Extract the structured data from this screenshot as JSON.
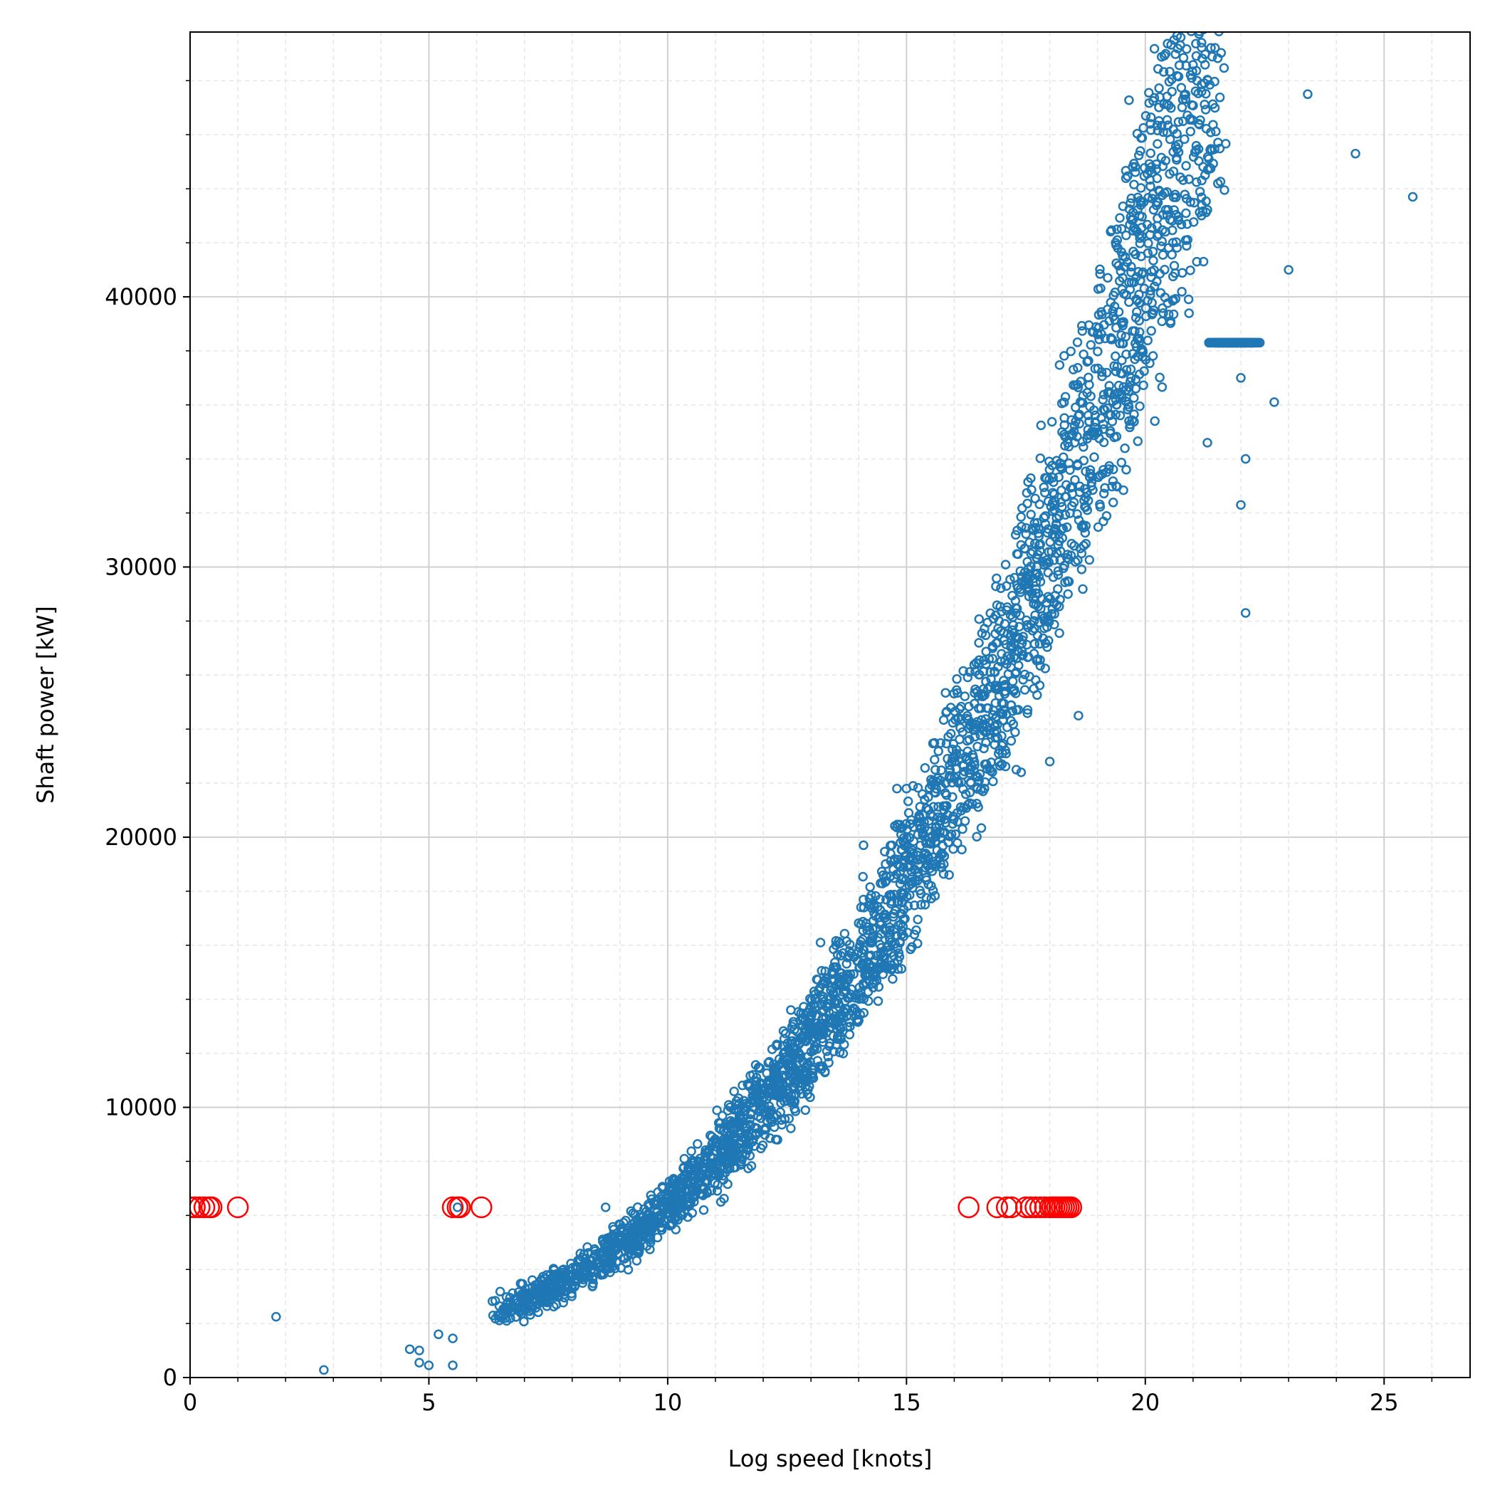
{
  "chart_data": {
    "type": "scatter",
    "title": "",
    "xlabel": "Log speed [knots]",
    "ylabel": "Shaft power [kW]",
    "xlim": [
      0,
      26.8
    ],
    "ylim": [
      0,
      49800
    ],
    "x_ticks": [
      0,
      5,
      10,
      15,
      20,
      25
    ],
    "y_ticks": [
      0,
      10000,
      20000,
      30000,
      40000
    ],
    "x_minor_step": 1,
    "y_minor_step": 2000,
    "grid": true,
    "legend": "none",
    "colors": {
      "main": "#1f77b4",
      "flagged": "#ff0000"
    },
    "series": [
      {
        "marker": "small-open-circle",
        "color": "#1f77b4",
        "trend": {
          "coef": [
            0.8,
            0.008,
            0.0047
          ],
          "power": 3,
          "scale": 1000
        },
        "points": [
          [
            1.8,
            2250
          ],
          [
            2.8,
            280
          ],
          [
            4.6,
            1050
          ],
          [
            4.8,
            1000
          ],
          [
            4.8,
            550
          ],
          [
            5.0,
            450
          ],
          [
            5.2,
            1600
          ],
          [
            5.5,
            1450
          ],
          [
            5.5,
            450
          ],
          [
            5.6,
            6300
          ],
          [
            8.7,
            6300
          ],
          [
            11.0,
            8700
          ],
          [
            12.3,
            8800
          ],
          [
            12.8,
            10500
          ],
          [
            13.2,
            11500
          ],
          [
            13.2,
            16100
          ],
          [
            14.1,
            19700
          ],
          [
            14.8,
            21800
          ],
          [
            15.0,
            21800
          ],
          [
            17.0,
            22700
          ],
          [
            17.3,
            22500
          ],
          [
            18.6,
            24500
          ],
          [
            19.8,
            36600
          ],
          [
            19.6,
            33600
          ],
          [
            20.2,
            35400
          ],
          [
            22.0,
            37000
          ],
          [
            21.8,
            38300
          ],
          [
            22.7,
            36100
          ],
          [
            23.0,
            41000
          ],
          [
            23.4,
            47500
          ],
          [
            24.4,
            45300
          ],
          [
            25.6,
            43700
          ],
          [
            22.1,
            34000
          ],
          [
            22.1,
            28300
          ],
          [
            22.0,
            32300
          ],
          [
            21.3,
            34600
          ],
          [
            17.4,
            22400
          ],
          [
            18.0,
            22800
          ]
        ]
      },
      {
        "marker": "large-open-circle",
        "color": "#ff0000",
        "points": [
          [
            0.0,
            6300
          ],
          [
            0.1,
            6300
          ],
          [
            0.2,
            6300
          ],
          [
            0.3,
            6300
          ],
          [
            0.4,
            6300
          ],
          [
            0.45,
            6300
          ],
          [
            1.0,
            6300
          ],
          [
            5.5,
            6300
          ],
          [
            5.6,
            6300
          ],
          [
            5.65,
            6300
          ],
          [
            6.1,
            6300
          ],
          [
            16.3,
            6300
          ],
          [
            16.9,
            6300
          ],
          [
            17.1,
            6300
          ],
          [
            17.2,
            6300
          ],
          [
            17.5,
            6300
          ],
          [
            17.6,
            6300
          ],
          [
            17.7,
            6300
          ],
          [
            17.8,
            6300
          ],
          [
            17.9,
            6300
          ],
          [
            18.0,
            6300
          ],
          [
            18.05,
            6300
          ],
          [
            18.1,
            6300
          ],
          [
            18.15,
            6300
          ],
          [
            18.2,
            6300
          ],
          [
            18.25,
            6300
          ],
          [
            18.3,
            6300
          ],
          [
            18.35,
            6300
          ],
          [
            18.4,
            6300
          ],
          [
            18.45,
            6300
          ]
        ]
      }
    ]
  }
}
